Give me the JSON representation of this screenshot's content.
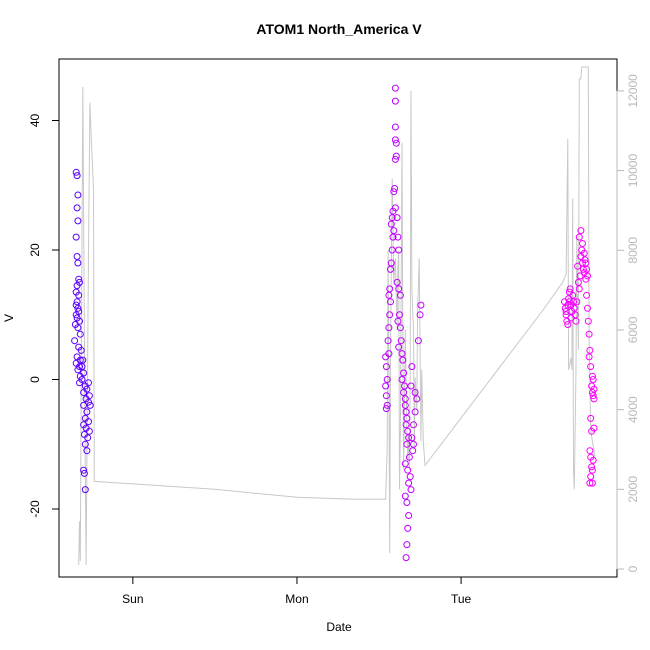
{
  "chart_data": {
    "type": "scatter",
    "title": "ATOM1 North_America V",
    "xlabel": "Date",
    "ylabel": "V",
    "x_ticks": [
      {
        "label": "Sun",
        "value": 0
      },
      {
        "label": "Mon",
        "value": 1
      },
      {
        "label": "Tue",
        "value": 2
      }
    ],
    "xlim": [
      -0.45,
      2.95
    ],
    "ylim": [
      -30.5,
      49.5
    ],
    "y_ticks": [
      -20,
      0,
      20,
      40
    ],
    "y2lim": [
      -200,
      12800
    ],
    "y2_ticks": [
      0,
      2000,
      4000,
      6000,
      8000,
      10000,
      12000
    ],
    "grid": false,
    "point_colors": {
      "start": "#5a00ff",
      "end": "#ff00ff"
    },
    "line_color": "#c8c8c8",
    "line_series_right_axis": [
      [
        -0.33,
        100
      ],
      [
        -0.325,
        1200
      ],
      [
        -0.32,
        200
      ],
      [
        -0.305,
        12100
      ],
      [
        -0.3,
        9000
      ],
      [
        -0.29,
        2500
      ],
      [
        -0.285,
        100
      ],
      [
        -0.27,
        8000
      ],
      [
        -0.262,
        11700
      ],
      [
        -0.255,
        11000
      ],
      [
        -0.25,
        10500
      ],
      [
        -0.24,
        9500
      ],
      [
        -0.235,
        2200
      ],
      [
        0.5,
        2000
      ],
      [
        1.0,
        1800
      ],
      [
        1.35,
        1750
      ],
      [
        1.54,
        1750
      ],
      [
        1.55,
        3000
      ],
      [
        1.555,
        8000
      ],
      [
        1.56,
        5000
      ],
      [
        1.565,
        400
      ],
      [
        1.57,
        5500
      ],
      [
        1.58,
        9800
      ],
      [
        1.585,
        8500
      ],
      [
        1.59,
        7200
      ],
      [
        1.6,
        7800
      ],
      [
        1.61,
        6000
      ],
      [
        1.615,
        7600
      ],
      [
        1.62,
        8000
      ],
      [
        1.625,
        2000
      ],
      [
        1.63,
        3500
      ],
      [
        1.64,
        10700
      ],
      [
        1.645,
        6000
      ],
      [
        1.65,
        2500
      ],
      [
        1.66,
        6000
      ],
      [
        1.67,
        3500
      ],
      [
        1.675,
        2700
      ],
      [
        1.68,
        3400
      ],
      [
        1.685,
        2500
      ],
      [
        1.69,
        5000
      ],
      [
        1.695,
        12000
      ],
      [
        1.7,
        7000
      ],
      [
        1.71,
        6000
      ],
      [
        1.715,
        3000
      ],
      [
        1.72,
        4800
      ],
      [
        1.73,
        4000
      ],
      [
        1.735,
        6500
      ],
      [
        1.745,
        7800
      ],
      [
        1.75,
        5500
      ],
      [
        1.755,
        3200
      ],
      [
        1.76,
        5000
      ],
      [
        1.77,
        3200
      ],
      [
        1.78,
        2600
      ],
      [
        2.5,
        6500
      ],
      [
        2.62,
        7200
      ],
      [
        2.64,
        7400
      ],
      [
        2.65,
        10800
      ],
      [
        2.655,
        5000
      ],
      [
        2.66,
        5100
      ],
      [
        2.67,
        5300
      ],
      [
        2.675,
        5000
      ],
      [
        2.68,
        9300
      ],
      [
        2.685,
        2500
      ],
      [
        2.69,
        2000
      ],
      [
        2.7,
        5000
      ],
      [
        2.705,
        8300
      ],
      [
        2.71,
        7000
      ],
      [
        2.715,
        5500
      ],
      [
        2.72,
        12300
      ],
      [
        2.73,
        12300
      ],
      [
        2.735,
        12600
      ],
      [
        2.775,
        12600
      ],
      [
        2.78,
        5800
      ],
      [
        2.79,
        3500
      ],
      [
        2.8,
        3200
      ],
      [
        2.81,
        3000
      ],
      [
        2.815,
        2800
      ]
    ],
    "scatter_points": [
      [
        -0.345,
        32
      ],
      [
        -0.34,
        31.5
      ],
      [
        -0.335,
        28.5
      ],
      [
        -0.34,
        26.5
      ],
      [
        -0.335,
        24.5
      ],
      [
        -0.345,
        22
      ],
      [
        -0.34,
        19
      ],
      [
        -0.335,
        18
      ],
      [
        -0.33,
        15.5
      ],
      [
        -0.325,
        15
      ],
      [
        -0.34,
        14.5
      ],
      [
        -0.345,
        13.5
      ],
      [
        -0.33,
        13
      ],
      [
        -0.34,
        12
      ],
      [
        -0.345,
        11.5
      ],
      [
        -0.335,
        11
      ],
      [
        -0.33,
        10.5
      ],
      [
        -0.345,
        10
      ],
      [
        -0.34,
        9.5
      ],
      [
        -0.325,
        9
      ],
      [
        -0.35,
        8.5
      ],
      [
        -0.335,
        8
      ],
      [
        -0.32,
        7
      ],
      [
        -0.355,
        6
      ],
      [
        -0.33,
        5
      ],
      [
        -0.315,
        4.5
      ],
      [
        -0.34,
        3.5
      ],
      [
        -0.32,
        3
      ],
      [
        -0.305,
        3
      ],
      [
        -0.345,
        2.5
      ],
      [
        -0.325,
        2
      ],
      [
        -0.31,
        2
      ],
      [
        -0.335,
        1.5
      ],
      [
        -0.3,
        1
      ],
      [
        -0.32,
        0.5
      ],
      [
        -0.31,
        0
      ],
      [
        -0.325,
        -0.5
      ],
      [
        -0.29,
        -1
      ],
      [
        -0.27,
        -0.5
      ],
      [
        -0.28,
        -1.5
      ],
      [
        -0.3,
        -2
      ],
      [
        -0.265,
        -2.5
      ],
      [
        -0.285,
        -3
      ],
      [
        -0.27,
        -3.5
      ],
      [
        -0.3,
        -4
      ],
      [
        -0.26,
        -4
      ],
      [
        -0.28,
        -5
      ],
      [
        -0.29,
        -6
      ],
      [
        -0.27,
        -6.5
      ],
      [
        -0.3,
        -7
      ],
      [
        -0.285,
        -7.5
      ],
      [
        -0.265,
        -8
      ],
      [
        -0.295,
        -8.5
      ],
      [
        -0.275,
        -9
      ],
      [
        -0.29,
        -10
      ],
      [
        -0.28,
        -11
      ],
      [
        -0.3,
        -14
      ],
      [
        -0.295,
        -14.5
      ],
      [
        -0.29,
        -17
      ],
      [
        1.54,
        3.5
      ],
      [
        1.545,
        2
      ],
      [
        1.55,
        0
      ],
      [
        1.54,
        -1
      ],
      [
        1.545,
        -2.5
      ],
      [
        1.55,
        -4
      ],
      [
        1.545,
        -4.5
      ],
      [
        1.555,
        6
      ],
      [
        1.56,
        4
      ],
      [
        1.56,
        8
      ],
      [
        1.565,
        10
      ],
      [
        1.57,
        12
      ],
      [
        1.56,
        13
      ],
      [
        1.565,
        14
      ],
      [
        1.57,
        17
      ],
      [
        1.575,
        18
      ],
      [
        1.58,
        20
      ],
      [
        1.585,
        22
      ],
      [
        1.59,
        23
      ],
      [
        1.575,
        24
      ],
      [
        1.58,
        25
      ],
      [
        1.585,
        26
      ],
      [
        1.6,
        26.5
      ],
      [
        1.59,
        29
      ],
      [
        1.595,
        29.5
      ],
      [
        1.6,
        34
      ],
      [
        1.605,
        34.5
      ],
      [
        1.6,
        37
      ],
      [
        1.605,
        36.5
      ],
      [
        1.6,
        39
      ],
      [
        1.6,
        43
      ],
      [
        1.6,
        45
      ],
      [
        1.61,
        25
      ],
      [
        1.615,
        22
      ],
      [
        1.62,
        20
      ],
      [
        1.61,
        15
      ],
      [
        1.62,
        14
      ],
      [
        1.63,
        13
      ],
      [
        1.625,
        10
      ],
      [
        1.615,
        9
      ],
      [
        1.63,
        8
      ],
      [
        1.635,
        6
      ],
      [
        1.62,
        5
      ],
      [
        1.64,
        4
      ],
      [
        1.645,
        3
      ],
      [
        1.65,
        1
      ],
      [
        1.64,
        0
      ],
      [
        1.655,
        -1
      ],
      [
        1.65,
        -2
      ],
      [
        1.66,
        -3
      ],
      [
        1.66,
        -4
      ],
      [
        1.665,
        -5
      ],
      [
        1.67,
        -6
      ],
      [
        1.665,
        -7
      ],
      [
        1.675,
        -8
      ],
      [
        1.68,
        -9
      ],
      [
        1.67,
        -10
      ],
      [
        1.685,
        -12
      ],
      [
        1.66,
        -13
      ],
      [
        1.675,
        -14
      ],
      [
        1.69,
        -15
      ],
      [
        1.68,
        -16
      ],
      [
        1.695,
        -17
      ],
      [
        1.66,
        -18
      ],
      [
        1.67,
        -19
      ],
      [
        1.68,
        -21
      ],
      [
        1.675,
        -23
      ],
      [
        1.67,
        -25.5
      ],
      [
        1.665,
        -27.5
      ],
      [
        1.7,
        -9
      ],
      [
        1.71,
        -7
      ],
      [
        1.72,
        -5
      ],
      [
        1.73,
        -3
      ],
      [
        1.74,
        6
      ],
      [
        1.75,
        10
      ],
      [
        1.755,
        11.5
      ],
      [
        1.7,
        2
      ],
      [
        1.695,
        -1
      ],
      [
        1.72,
        -2
      ],
      [
        1.71,
        -10
      ],
      [
        1.705,
        -11
      ]
    ]
  }
}
